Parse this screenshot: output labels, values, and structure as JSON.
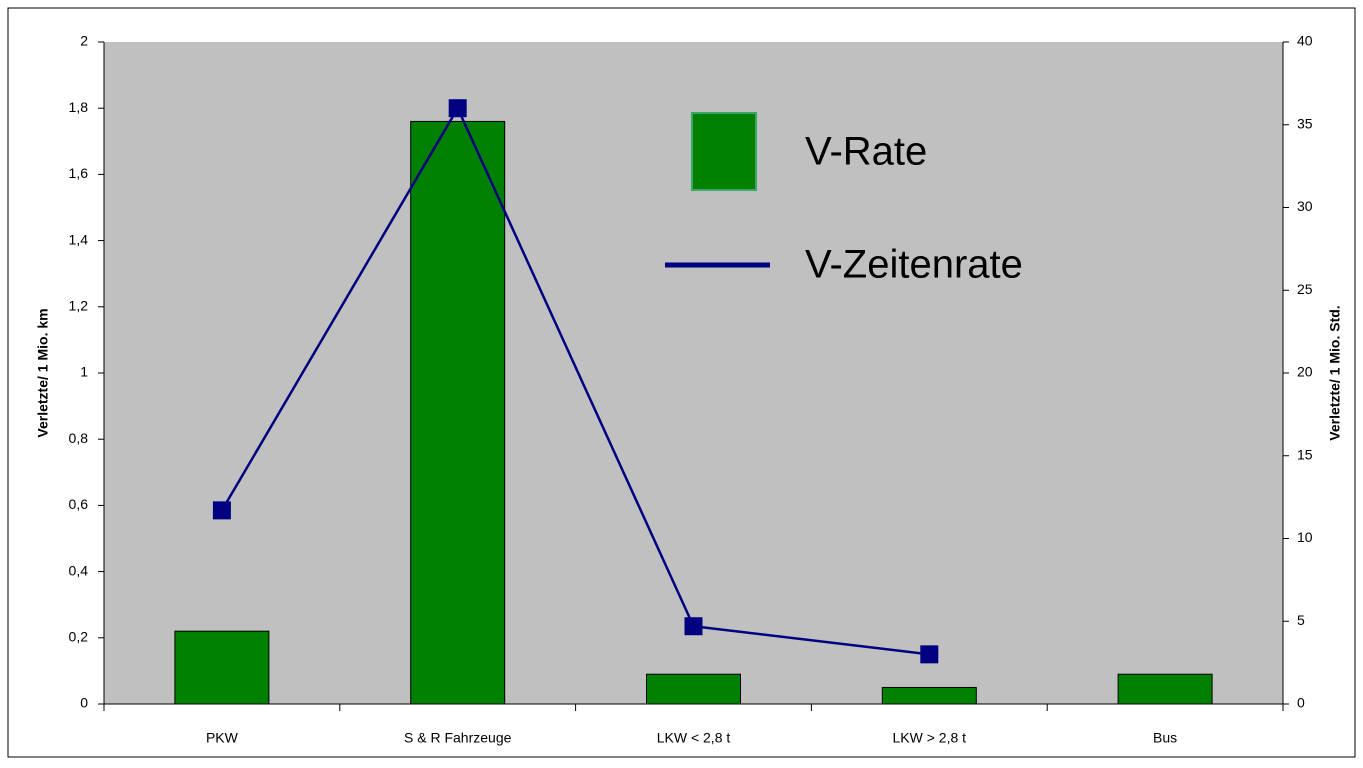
{
  "chart_data": {
    "type": "bar",
    "ylabel": "Verletzte/ 1 Mio. km",
    "y2label": "Verletzte/ 1 Mio. Std.",
    "categories": [
      "PKW",
      "S & R Fahrzeuge",
      "LKW < 2,8 t",
      "LKW > 2,8 t",
      "Bus"
    ],
    "series": [
      {
        "name": "V-Rate",
        "type": "bar",
        "color": "#008000",
        "values": [
          0.22,
          1.76,
          0.09,
          0.05,
          0.09
        ]
      },
      {
        "name": "V-Zeitenrate",
        "type": "line",
        "axis": "y2",
        "color": "#000080",
        "values": [
          11.7,
          36.0,
          4.7,
          3.0,
          null
        ]
      }
    ],
    "ylim": [
      0,
      2
    ],
    "yticks": [
      0,
      {
        "value": 0.2,
        "label": "0,2"
      },
      {
        "value": 0.4,
        "label": "0,4"
      },
      {
        "value": 0.6,
        "label": "0,6"
      },
      {
        "value": 0.8,
        "label": "0,8"
      },
      1,
      {
        "value": 1.2,
        "label": "1,2"
      },
      {
        "value": 1.4,
        "label": "1,4"
      },
      {
        "value": 1.6,
        "label": "1,6"
      },
      {
        "value": 1.8,
        "label": "1,8"
      },
      2
    ],
    "y2lim": [
      0,
      40
    ],
    "y2ticks": [
      0,
      5,
      10,
      15,
      20,
      25,
      30,
      35,
      40
    ],
    "background": "#c0c0c0",
    "grid": false
  }
}
